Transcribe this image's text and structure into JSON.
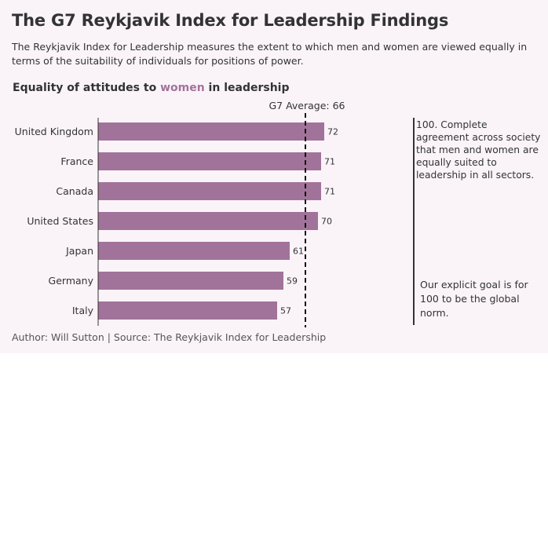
{
  "title": "The G7 Reykjavik Index for Leadership Findings",
  "subtitle": "The Reykjavik Index for Leadership measures the extent to which men and women are viewed equally in terms of the suitability of individuals for positions of power.",
  "chart_heading": {
    "prefix": "Equality of attitudes to ",
    "highlight": "women",
    "suffix": " in leadership"
  },
  "annotations": {
    "top": "100. Complete agreement across society that men and women are equally suited to leadership in all sectors.",
    "bottom": "Our explicit goal is for 100 to be the global norm."
  },
  "footer": "Author: Will Sutton | Source: The Reykjavik Index for Leadership",
  "colors": {
    "bar": "#a2739a",
    "highlight": "#a2739a",
    "background": "#faf4f9",
    "text": "#333333"
  },
  "chart_data": {
    "type": "bar",
    "orientation": "horizontal",
    "categories": [
      "United Kingdom",
      "France",
      "Canada",
      "United States",
      "Japan",
      "Germany",
      "Italy"
    ],
    "values": [
      72,
      71,
      71,
      70,
      61,
      59,
      57
    ],
    "reference_line": {
      "label": "G7 Average: 66",
      "value": 66,
      "style": "dashed"
    },
    "xlim": [
      0,
      100
    ],
    "grid": false
  }
}
